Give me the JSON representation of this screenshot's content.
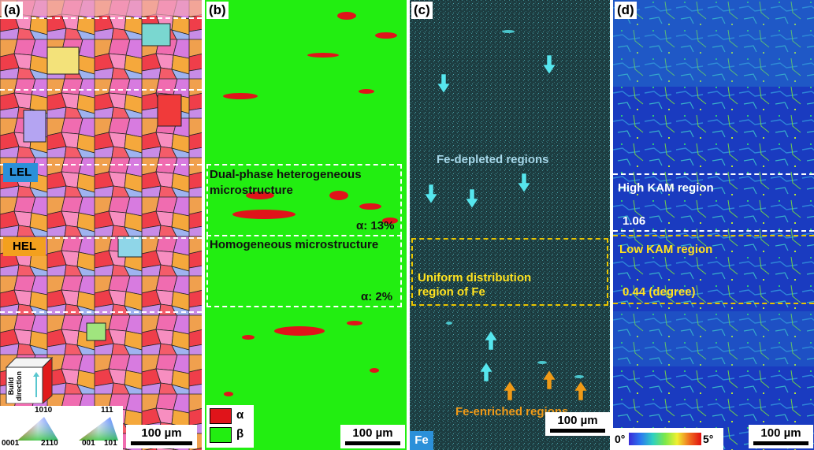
{
  "panel_a": {
    "label": "(a)",
    "tag_lel": "LEL",
    "tag_hel": "HEL",
    "build_direction": "Build direction",
    "ipf": {
      "hex_top": "1010",
      "hex_left": "0001",
      "hex_right": "2110",
      "cubic_top": "111",
      "cubic_left": "001",
      "cubic_right": "101"
    },
    "scale": "100 µm"
  },
  "panel_b": {
    "label": "(b)",
    "text_dual": "Dual-phase heterogeneous microstructure",
    "alpha_13": "α: 13%",
    "text_homog": "Homogeneous microstructure",
    "alpha_2": "α: 2%",
    "legend_alpha": "α",
    "legend_beta": "β",
    "scale": "100 µm"
  },
  "panel_c": {
    "label": "(c)",
    "fe_depleted": "Fe-depleted regions",
    "uniform_line1": "Uniform distribution",
    "uniform_line2": "region of Fe",
    "fe_enriched": "Fe-enriched regions",
    "fe_tag": "Fe",
    "scale": "100 µm"
  },
  "panel_d": {
    "label": "(d)",
    "high_kam": "High KAM region",
    "high_val": "1.06",
    "low_kam": "Low KAM region",
    "low_val": "0.44 (degree)",
    "cb_min": "0°",
    "cb_max": "5°",
    "scale": "100 µm"
  },
  "colors": {
    "beta_green": "#22ee11",
    "alpha_red": "#e0141a",
    "fe_bg": "#1b3a3d",
    "fe_cyan": "#56e6ee",
    "kam_blue": "#1536b8",
    "yellow": "#ffe21f",
    "orange": "#f09a17",
    "lel_blue": "#2b90d9",
    "hel_orange": "#f3a01e"
  }
}
